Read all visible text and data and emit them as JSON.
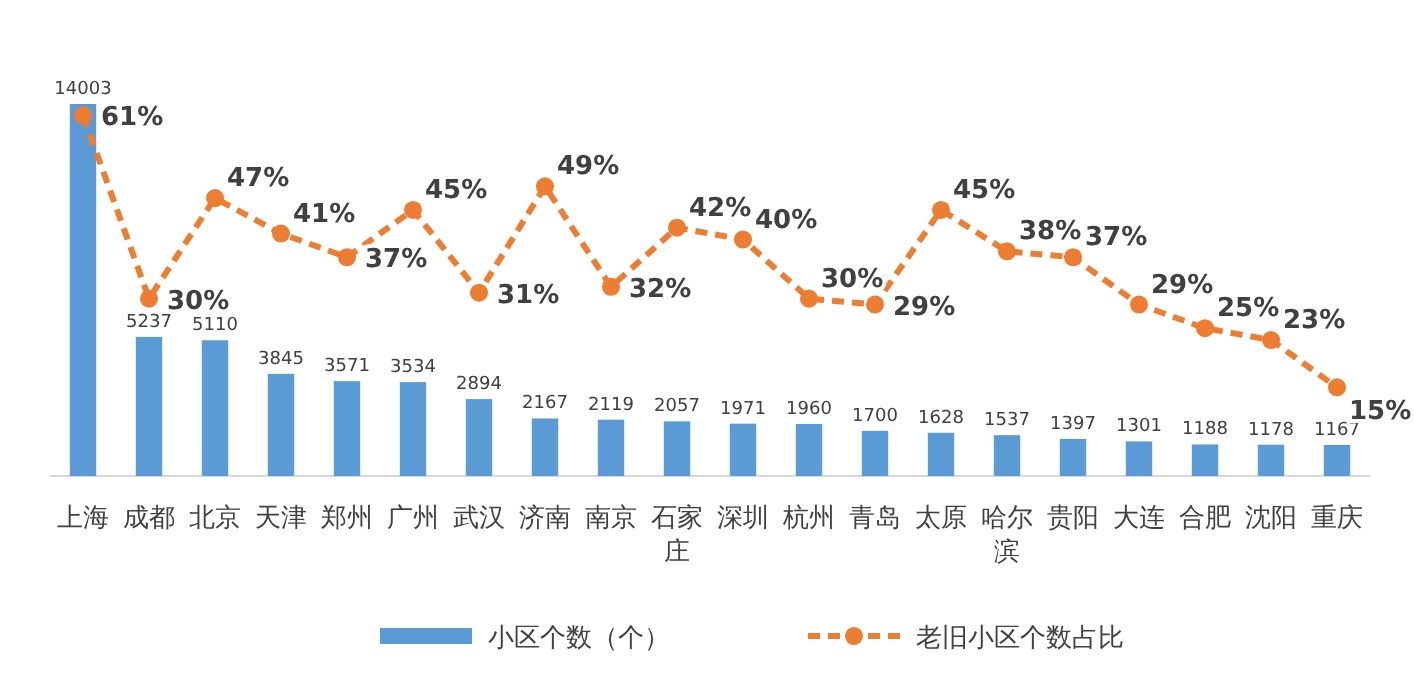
{
  "chart_data": {
    "type": "bar",
    "categories": [
      "上海",
      "成都",
      "北京",
      "天津",
      "郑州",
      "广州",
      "武汉",
      "济南",
      "南京",
      "石家庄",
      "深圳",
      "杭州",
      "青岛",
      "太原",
      "哈尔滨",
      "贵阳",
      "大连",
      "合肥",
      "沈阳",
      "重庆"
    ],
    "series": [
      {
        "name": "小区个数（个）",
        "color": "#5b9bd5",
        "values": [
          14003,
          5237,
          5110,
          3845,
          3571,
          3534,
          2894,
          2167,
          2119,
          2057,
          1971,
          1960,
          1700,
          1628,
          1537,
          1397,
          1301,
          1188,
          1178,
          1167
        ],
        "value_labels": [
          "14003",
          "5237",
          "5110",
          "3845",
          "3571",
          "3534",
          "2894",
          "2167",
          "2119",
          "2057",
          "1971",
          "1960",
          "1700",
          "1628",
          "1537",
          "1397",
          "1301",
          "1188",
          "1178",
          "1167"
        ]
      },
      {
        "name": "老旧小区个数占比",
        "type": "line",
        "axis": "y2",
        "color": "#ed7d31",
        "values": [
          61,
          30,
          47,
          41,
          37,
          45,
          31,
          49,
          32,
          42,
          40,
          30,
          29,
          45,
          38,
          37,
          29,
          25,
          23,
          15
        ],
        "value_labels": [
          "61%",
          "30%",
          "47%",
          "41%",
          "37%",
          "45%",
          "31%",
          "49%",
          "32%",
          "42%",
          "40%",
          "30%",
          "29%",
          "45%",
          "38%",
          "37%",
          "29%",
          "25%",
          "23%",
          "15%"
        ]
      }
    ],
    "tick_labels": "x",
    "legend": "bottom",
    "marker": "circle",
    "line_style": "dashed"
  }
}
